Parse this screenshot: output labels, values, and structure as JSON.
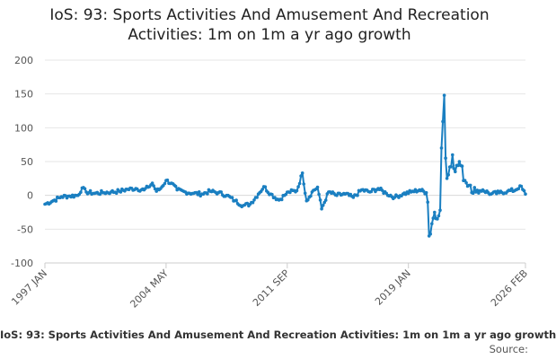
{
  "chart_data": {
    "type": "line",
    "title": "IoS: 93: Sports Activities And Amusement And Recreation Activities: 1m on 1m a yr ago growth",
    "xlabel": "",
    "ylabel": "",
    "x_ticks": [
      "1997 JAN",
      "2004 MAY",
      "2011 SEP",
      "2019 JAN",
      "2026 FEB"
    ],
    "x_range": [
      "1997 JAN",
      "2026 FEB"
    ],
    "y_ticks": [
      200,
      150,
      100,
      50,
      0,
      -50,
      -100
    ],
    "ylim": [
      -100,
      200
    ],
    "grid": true,
    "legend_position": "bottom",
    "series": [
      {
        "name": "IoS: 93: Sports Activities And Amusement And Recreation Activities: 1m on 1m a yr ago growth",
        "color": "#1a7fc1",
        "anchors": [
          [
            "1997-01",
            -13
          ],
          [
            "1997-07",
            -8
          ],
          [
            "1998-01",
            -2
          ],
          [
            "1998-07",
            -1
          ],
          [
            "1999-01",
            0
          ],
          [
            "1999-04",
            11
          ],
          [
            "1999-07",
            5
          ],
          [
            "2000-01",
            3
          ],
          [
            "2000-07",
            4
          ],
          [
            "2001-01",
            5
          ],
          [
            "2001-07",
            6
          ],
          [
            "2002-01",
            9
          ],
          [
            "2002-07",
            10
          ],
          [
            "2003-01",
            8
          ],
          [
            "2003-04",
            12
          ],
          [
            "2003-07",
            18
          ],
          [
            "2003-10",
            6
          ],
          [
            "2004-01",
            10
          ],
          [
            "2004-05",
            22
          ],
          [
            "2004-09",
            18
          ],
          [
            "2005-01",
            8
          ],
          [
            "2005-07",
            5
          ],
          [
            "2006-01",
            3
          ],
          [
            "2006-07",
            2
          ],
          [
            "2007-01",
            6
          ],
          [
            "2007-07",
            4
          ],
          [
            "2008-01",
            0
          ],
          [
            "2008-07",
            -8
          ],
          [
            "2009-01",
            -15
          ],
          [
            "2009-06",
            -13
          ],
          [
            "2009-12",
            2
          ],
          [
            "2010-04",
            13
          ],
          [
            "2010-09",
            2
          ],
          [
            "2011-03",
            -7
          ],
          [
            "2011-07",
            0
          ],
          [
            "2011-10",
            5
          ],
          [
            "2012-04",
            7
          ],
          [
            "2012-08",
            33
          ],
          [
            "2012-11",
            -8
          ],
          [
            "2013-03",
            5
          ],
          [
            "2013-07",
            12
          ],
          [
            "2013-10",
            -20
          ],
          [
            "2014-03",
            5
          ],
          [
            "2014-09",
            0
          ],
          [
            "2015-03",
            2
          ],
          [
            "2015-09",
            -3
          ],
          [
            "2016-03",
            8
          ],
          [
            "2016-09",
            5
          ],
          [
            "2017-03",
            10
          ],
          [
            "2017-09",
            3
          ],
          [
            "2018-03",
            -3
          ],
          [
            "2018-09",
            2
          ],
          [
            "2019-03",
            5
          ],
          [
            "2019-09",
            8
          ],
          [
            "2020-02",
            4
          ],
          [
            "2020-03",
            -10
          ],
          [
            "2020-04",
            -60
          ],
          [
            "2020-06",
            -42
          ],
          [
            "2020-08",
            -25
          ],
          [
            "2020-10",
            -35
          ],
          [
            "2020-12",
            -22
          ],
          [
            "2021-01",
            70
          ],
          [
            "2021-03",
            148
          ],
          [
            "2021-04",
            55
          ],
          [
            "2021-05",
            25
          ],
          [
            "2021-07",
            42
          ],
          [
            "2021-09",
            60
          ],
          [
            "2021-11",
            35
          ],
          [
            "2022-02",
            50
          ],
          [
            "2022-06",
            22
          ],
          [
            "2022-10",
            15
          ],
          [
            "2023-02",
            5
          ],
          [
            "2023-07",
            8
          ],
          [
            "2024-01",
            2
          ],
          [
            "2024-07",
            4
          ],
          [
            "2025-01",
            6
          ],
          [
            "2025-07",
            8
          ],
          [
            "2025-10",
            14
          ],
          [
            "2026-02",
            2
          ]
        ]
      }
    ]
  },
  "legend_label": "IoS: 93: Sports Activities And Amusement And Recreation Activities: 1m on 1m a yr ago growth",
  "source_label": "Source:"
}
